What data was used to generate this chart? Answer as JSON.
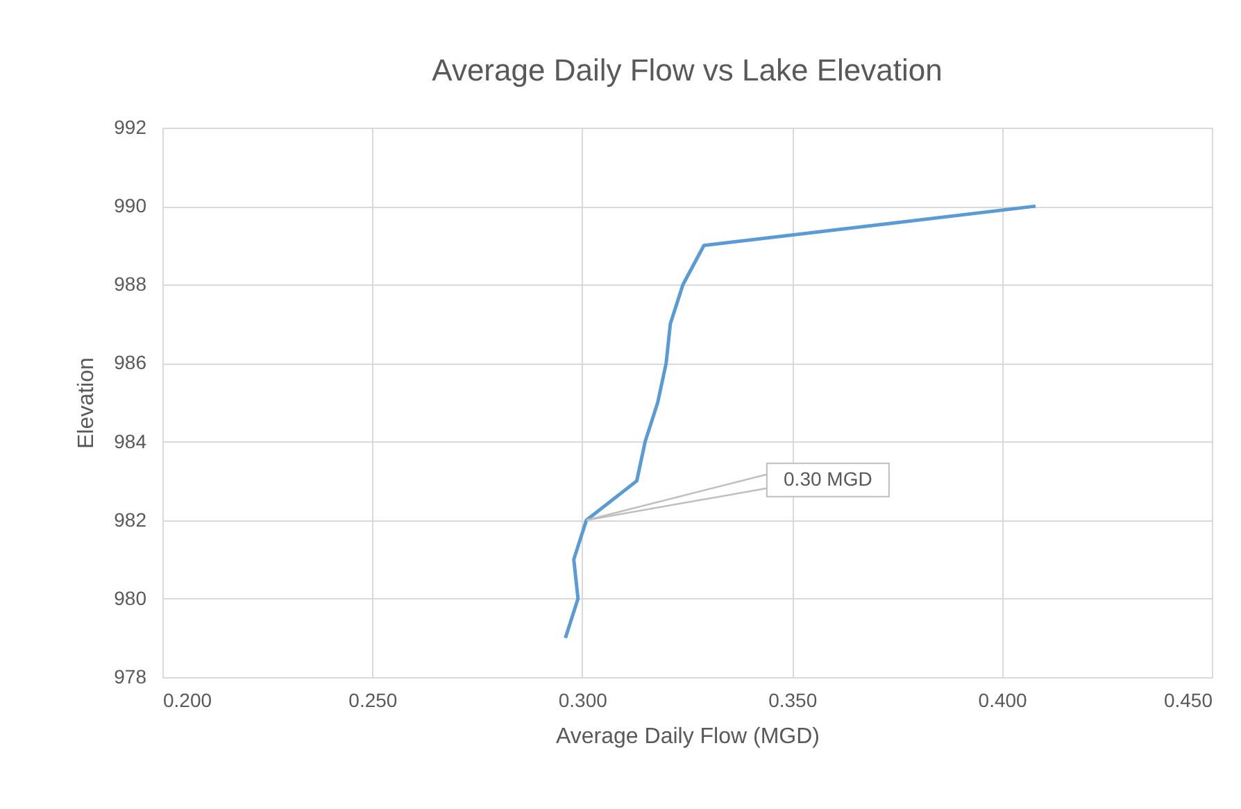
{
  "chart_data": {
    "type": "line",
    "title": "Average Daily Flow vs Lake Elevation",
    "xlabel": "Average Daily Flow (MGD)",
    "ylabel": "Elevation",
    "x": [
      0.296,
      0.299,
      0.298,
      0.301,
      0.313,
      0.315,
      0.318,
      0.32,
      0.321,
      0.324,
      0.329,
      0.408
    ],
    "series": [
      {
        "color": "#5b9bd5",
        "values": [
          979,
          980,
          981,
          982,
          983,
          984,
          985,
          986,
          987,
          988,
          989,
          990
        ]
      }
    ],
    "xlim": [
      0.2,
      0.45
    ],
    "xticks": [
      {
        "value": 0.2,
        "label": "0.200"
      },
      {
        "value": 0.25,
        "label": "0.250"
      },
      {
        "value": 0.3,
        "label": "0.300"
      },
      {
        "value": 0.35,
        "label": "0.350"
      },
      {
        "value": 0.4,
        "label": "0.400"
      },
      {
        "value": 0.45,
        "label": "0.450"
      }
    ],
    "ylim": [
      978,
      992
    ],
    "yticks": [
      978,
      980,
      982,
      984,
      986,
      988,
      990,
      992
    ],
    "grid": true,
    "marker": "none",
    "line_style": "solid",
    "annotations": [
      {
        "text": "0.30 MGD",
        "x": 0.301,
        "y": 982
      }
    ]
  }
}
